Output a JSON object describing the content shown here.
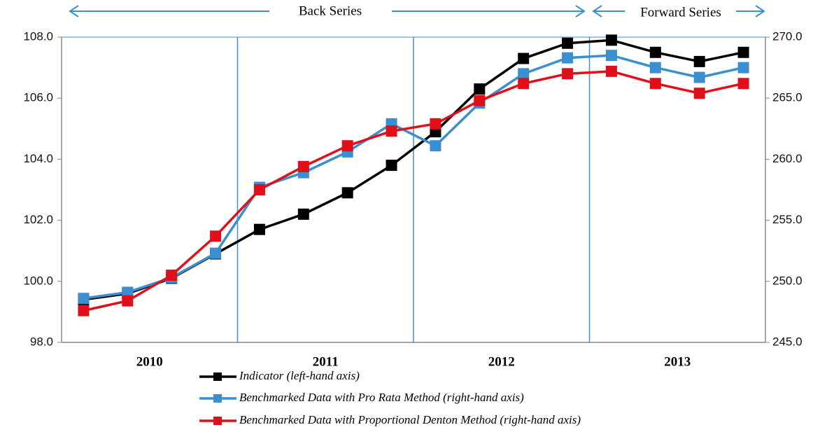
{
  "chart_data": {
    "type": "line",
    "annotations": [
      "Back Series",
      "Forward Series"
    ],
    "categories": [
      null,
      null,
      null,
      null,
      null,
      null,
      null,
      null,
      null,
      null,
      null,
      null,
      null,
      null,
      null,
      null
    ],
    "year_labels": [
      "2010",
      "2011",
      "2012",
      "2013"
    ],
    "ylim": [
      98,
      108
    ],
    "yticks": [
      {
        "value": 98,
        "label": "98.0"
      },
      {
        "value": 100,
        "label": "100.0"
      },
      {
        "value": 102,
        "label": "102.0"
      },
      {
        "value": 104,
        "label": "104.0"
      },
      {
        "value": 106,
        "label": "106.0"
      },
      {
        "value": 108,
        "label": "108.0"
      }
    ],
    "y2lim": [
      245,
      270
    ],
    "y2ticks": [
      {
        "value": 245,
        "label": "245.0"
      },
      {
        "value": 250,
        "label": "250.0"
      },
      {
        "value": 255,
        "label": "255.0"
      },
      {
        "value": 260,
        "label": "260.0"
      },
      {
        "value": 265,
        "label": "265.0"
      },
      {
        "value": 270,
        "label": "270.0"
      }
    ],
    "series": [
      {
        "name": "Indicator (left-hand axis)",
        "color": "#000000",
        "values": [
          99.4,
          99.6,
          100.1,
          100.9,
          101.7,
          102.2,
          102.9,
          103.8,
          104.9,
          106.3,
          107.3,
          107.8,
          107.9,
          107.5,
          107.2,
          107.5
        ]
      },
      {
        "name": "Benchmarked Data with Pro Rata Method (right-hand axis)",
        "color": "#3a8fd0",
        "axis": "y2",
        "values": [
          248.6,
          249.1,
          250.3,
          252.3,
          257.7,
          258.9,
          260.6,
          262.9,
          261.1,
          264.6,
          267.0,
          268.3,
          268.5,
          267.5,
          266.7,
          267.5
        ]
      },
      {
        "name": "Benchmarked Data with Proportional Denton Method (right-hand axis)",
        "color": "#e0101a",
        "axis": "y2",
        "values": [
          247.6,
          248.4,
          250.5,
          253.7,
          257.5,
          259.4,
          261.1,
          262.3,
          262.9,
          264.8,
          266.2,
          267.0,
          267.2,
          266.2,
          265.4,
          266.2
        ]
      }
    ]
  }
}
